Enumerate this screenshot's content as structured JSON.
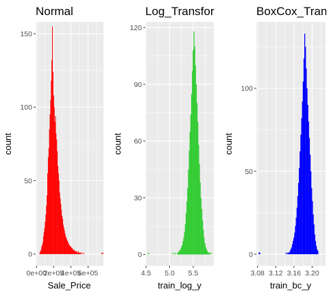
{
  "chart_data": [
    {
      "type": "bar",
      "title": "Normal",
      "xlabel": "Sale_Price",
      "ylabel": "count",
      "color": "#ff0000",
      "xlim": [
        -10000,
        780000
      ],
      "ylim": [
        -8,
        158
      ],
      "yticks": [
        0,
        50,
        100,
        150
      ],
      "yminor": [
        25,
        75,
        125
      ],
      "xticks": [
        {
          "value": 0,
          "label": "0e+00"
        },
        {
          "value": 200000,
          "label": "2e+05"
        },
        {
          "value": 400000,
          "label": "4e+05"
        },
        {
          "value": 600000,
          "label": "6e+05"
        }
      ],
      "xminor": [
        100000,
        300000,
        500000,
        700000
      ],
      "bin_start": 34900,
      "bin_width": 7000,
      "values": [
        1,
        2,
        3,
        5,
        6,
        8,
        12,
        15,
        18,
        22,
        27,
        33,
        40,
        55,
        66,
        72,
        85,
        95,
        105,
        118,
        132,
        155,
        124,
        108,
        100,
        90,
        94,
        82,
        78,
        70,
        60,
        55,
        50,
        42,
        38,
        34,
        30,
        26,
        24,
        20,
        18,
        16,
        14,
        12,
        11,
        10,
        9,
        8,
        7,
        6,
        6,
        5,
        5,
        4,
        4,
        3,
        3,
        3,
        2,
        2,
        2,
        2,
        1,
        1,
        2,
        1,
        1,
        1,
        1,
        0,
        1,
        0,
        0,
        1,
        0,
        0,
        0,
        0,
        0,
        0,
        0,
        0,
        0,
        0,
        0,
        0,
        0,
        0,
        0,
        0,
        0,
        0,
        0,
        0,
        0,
        0,
        0,
        0,
        0,
        0,
        0,
        0,
        0,
        1,
        0,
        1
      ]
    },
    {
      "type": "bar",
      "title": "Log_Transfor",
      "xlabel": "train_log_y",
      "ylabel": "count",
      "color": "#33cc33",
      "xlim": [
        4.485,
        5.936
      ],
      "ylim": [
        -6,
        123
      ],
      "yticks": [
        0,
        30,
        60,
        90,
        120
      ],
      "yminor": [
        15,
        45,
        75,
        105
      ],
      "xticks": [
        {
          "value": 4.5,
          "label": "4.5"
        },
        {
          "value": 5.0,
          "label": "5.0"
        },
        {
          "value": 5.5,
          "label": "5.5"
        }
      ],
      "xminor": [
        4.75,
        5.25,
        5.75
      ],
      "bin_start": 4.543,
      "bin_width": 0.0166,
      "values": [
        1,
        0,
        0,
        0,
        0,
        0,
        0,
        0,
        0,
        0,
        0,
        0,
        0,
        0,
        0,
        0,
        0,
        0,
        0,
        0,
        0,
        0,
        0,
        0,
        0,
        0,
        0,
        0,
        0,
        0,
        0,
        1,
        0,
        0,
        1,
        0,
        0,
        1,
        1,
        2,
        2,
        3,
        4,
        5,
        7,
        9,
        12,
        16,
        22,
        28,
        35,
        45,
        55,
        65,
        74,
        85,
        97,
        108,
        118,
        110,
        100,
        90,
        80,
        70,
        58,
        48,
        38,
        30,
        24,
        18,
        13,
        9,
        6,
        4,
        3,
        2,
        1,
        1,
        1,
        0,
        1,
        0
      ]
    },
    {
      "type": "bar",
      "title": "BoxCox_Tran",
      "xlabel": "train_bc_y",
      "ylabel": "count",
      "color": "#0000ff",
      "xlim": [
        3.0775,
        3.2295
      ],
      "ylim": [
        -7,
        140
      ],
      "yticks": [
        0,
        50,
        100
      ],
      "yminor": [
        25,
        75,
        125
      ],
      "xticks": [
        {
          "value": 3.08,
          "label": "3.08"
        },
        {
          "value": 3.12,
          "label": "3.12"
        },
        {
          "value": 3.16,
          "label": "3.16"
        },
        {
          "value": 3.2,
          "label": "3.20"
        }
      ],
      "xminor": [
        3.1,
        3.14,
        3.18,
        3.22
      ],
      "bin_start": 3.0825,
      "bin_width": 0.0017,
      "values": [
        1,
        1,
        0,
        0,
        0,
        0,
        0,
        0,
        0,
        0,
        0,
        0,
        0,
        0,
        0,
        0,
        0,
        0,
        0,
        0,
        0,
        0,
        0,
        0,
        0,
        0,
        0,
        0,
        0,
        0,
        0,
        0,
        0,
        0,
        0,
        1,
        0,
        1,
        1,
        1,
        2,
        3,
        4,
        6,
        8,
        10,
        13,
        17,
        22,
        28,
        35,
        43,
        52,
        62,
        72,
        82,
        92,
        104,
        118,
        133,
        125,
        112,
        100,
        90,
        80,
        70,
        60,
        50,
        40,
        32,
        24,
        18,
        12,
        8,
        5,
        3,
        2
      ]
    }
  ]
}
